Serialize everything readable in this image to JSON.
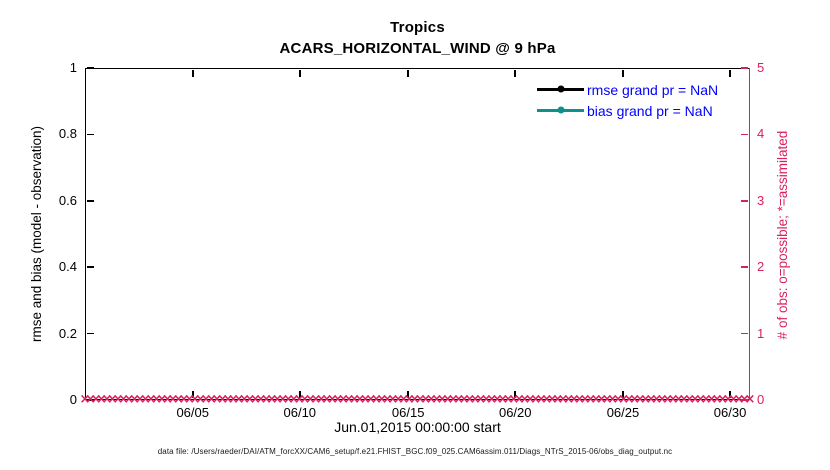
{
  "figure": {
    "title_line1": "Tropics",
    "title_line2": "ACARS_HORIZONTAL_WIND @ 9 hPa",
    "xlabel": "Jun.01,2015 00:00:00 start",
    "footer": "data file: /Users/raeder/DAI/ATM_forcXX/CAM6_setup/f.e21.FHIST_BGC.f09_025.CAM6assim.011/Diags_NTrS_2015-06/obs_diag_output.nc"
  },
  "axes": {
    "left": {
      "label": "rmse and bias (model - observation)",
      "ticks": [
        "0",
        "0.2",
        "0.4",
        "0.6",
        "0.8",
        "1"
      ],
      "color": "#000000"
    },
    "right": {
      "label": "# of obs: o=possible; *=assimilated",
      "ticks": [
        "0",
        "1",
        "2",
        "3",
        "4",
        "5"
      ],
      "color": "#D9215E"
    },
    "x": {
      "ticks": [
        "06/05",
        "06/10",
        "06/15",
        "06/20",
        "06/25",
        "06/30"
      ]
    }
  },
  "legend": {
    "text_color": "#0000FF",
    "items": [
      {
        "label": "rmse grand pr = NaN",
        "color": "#000000"
      },
      {
        "label": "bias grand pr = NaN",
        "color": "#0D918C"
      }
    ]
  },
  "chart_data": {
    "type": "line",
    "title": "Tropics",
    "subtitle": "ACARS_HORIZONTAL_WIND @ 9 hPa",
    "xlabel": "Jun.01,2015 00:00:00 start",
    "x_axis": {
      "tick_labels": [
        "06/05",
        "06/10",
        "06/15",
        "06/20",
        "06/25",
        "06/30"
      ],
      "span": "Jun 01 2015 00:00 through Jun 30 2015",
      "tick_step_days": 5
    },
    "left_y_axis": {
      "label": "rmse and bias (model - observation)",
      "range": [
        0,
        1
      ],
      "tick_step": 0.2,
      "color": "#000000"
    },
    "right_y_axis": {
      "label": "# of obs: o=possible; *=assimilated",
      "range": [
        0,
        5
      ],
      "tick_step": 1,
      "color": "#D9215E"
    },
    "grid": false,
    "legend_position": "inside top-right, no box",
    "series": [
      {
        "name": "rmse grand pr = NaN",
        "axis": "left",
        "color": "#000000",
        "marker": "filled-circle",
        "values": "NaN - no curve plotted"
      },
      {
        "name": "bias grand pr = NaN",
        "axis": "left",
        "color": "#0D918C",
        "marker": "filled-circle",
        "values": "NaN - no curve plotted"
      },
      {
        "name": "# of obs (possible and assimilated)",
        "axis": "right",
        "color": "#D9215E",
        "marker": "x",
        "value_constant": 0,
        "n_markers_estimated": 122,
        "note": "dense unbroken row of x markers at y=0 spanning the full month"
      }
    ]
  }
}
